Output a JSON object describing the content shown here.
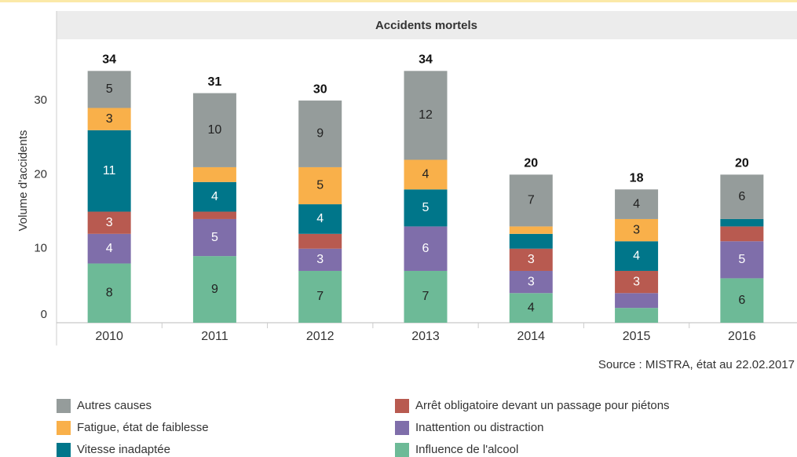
{
  "chart_data": {
    "type": "bar",
    "stacked": true,
    "title": "Accidents mortels",
    "y_label": "Volume d'accidents",
    "source": "Source : MISTRA, état au 22.02.2017",
    "categories": [
      "2010",
      "2011",
      "2012",
      "2013",
      "2014",
      "2015",
      "2016"
    ],
    "totals": [
      34,
      31,
      30,
      34,
      20,
      18,
      20
    ],
    "series": [
      {
        "name": "Influence de l'alcool",
        "color": "#6dba97",
        "values": [
          8,
          9,
          7,
          7,
          4,
          2,
          6
        ]
      },
      {
        "name": "Inattention ou distraction",
        "color": "#7f6eaa",
        "values": [
          4,
          5,
          3,
          6,
          3,
          2,
          5
        ]
      },
      {
        "name": "Arrêt obligatoire devant un passage pour piétons",
        "color": "#b85a50",
        "values": [
          3,
          1,
          2,
          0,
          3,
          3,
          2
        ]
      },
      {
        "name": "Vitesse inadaptée",
        "color": "#00768a",
        "values": [
          11,
          4,
          4,
          5,
          2,
          4,
          1
        ]
      },
      {
        "name": "Fatigue, état de faiblesse",
        "color": "#f9b04a",
        "values": [
          3,
          2,
          5,
          4,
          1,
          3,
          0
        ]
      },
      {
        "name": "Autres causes",
        "color": "#959c9b",
        "values": [
          5,
          10,
          9,
          12,
          7,
          4,
          6
        ]
      }
    ],
    "ylim": [
      0,
      38
    ],
    "yticks": [
      0,
      10,
      20,
      30
    ],
    "grid": false
  }
}
